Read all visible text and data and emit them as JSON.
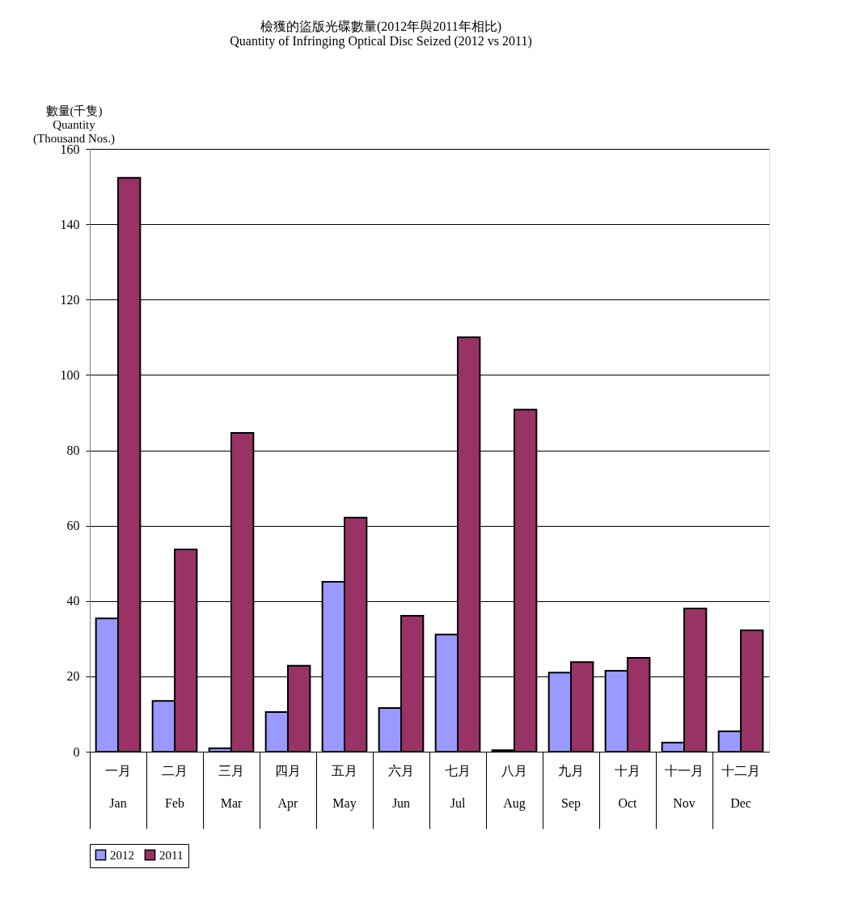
{
  "chart_data": {
    "type": "bar",
    "title": "檢獲的盜版光碟數量(2012年與2011年相比)\nQuantity of Infringing Optical Disc Seized (2012 vs 2011)",
    "ylabel": "數量(千隻)\nQuantity\n(Thousand Nos.)",
    "categories": [
      "一月\nJan",
      "二月\nFeb",
      "三月\nMar",
      "四月\nApr",
      "五月\nMay",
      "六月\nJun",
      "七月\nJul",
      "八月\nAug",
      "九月\nSep",
      "十月\nOct",
      "十一月\nNov",
      "十二月\nDec"
    ],
    "series": [
      {
        "name": "2012",
        "color": "#9999ff",
        "values": [
          35.4,
          13.5,
          0.9,
          10.5,
          45.1,
          11.6,
          31.1,
          0.4,
          21.0,
          21.5,
          2.4,
          5.4
        ]
      },
      {
        "name": "2011",
        "color": "#993366",
        "values": [
          152.3,
          53.7,
          84.6,
          22.8,
          62.1,
          36.1,
          110.0,
          90.8,
          23.8,
          24.9,
          38.0,
          32.2
        ]
      }
    ],
    "ylim": [
      0,
      160
    ],
    "yticks": [
      0,
      20,
      40,
      60,
      80,
      100,
      120,
      140,
      160
    ],
    "grid": "y",
    "legend": "bottom"
  }
}
